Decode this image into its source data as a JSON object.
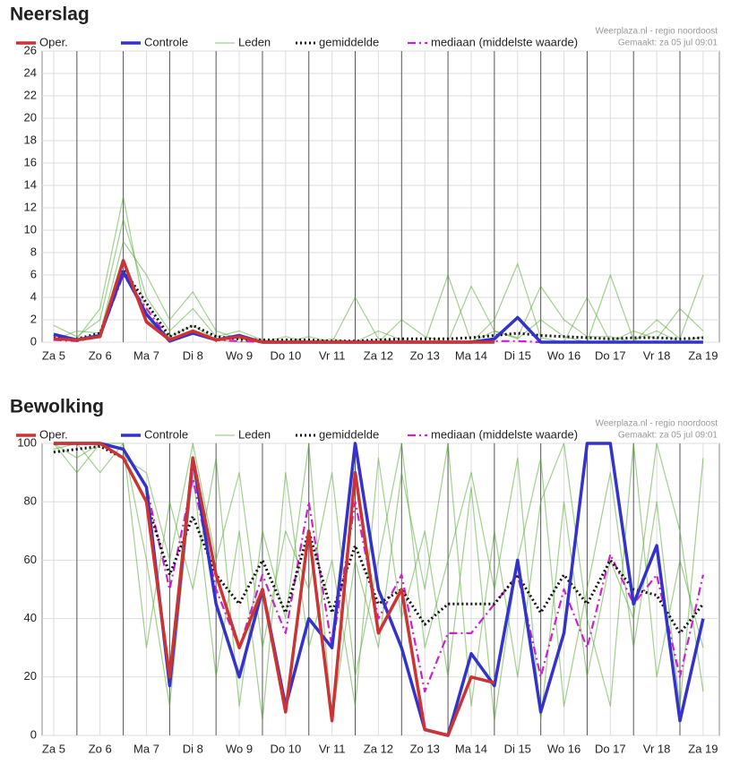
{
  "chart_data": [
    {
      "type": "line",
      "title": "Neerslag",
      "source": "Weerplaza.nl - regio noordoost",
      "created": "Gemaakt: za 05 jul 09:01",
      "xlim": [
        0.25,
        14.85
      ],
      "ylim": [
        0,
        26
      ],
      "yticks": [
        0,
        2,
        4,
        6,
        8,
        10,
        12,
        14,
        16,
        18,
        20,
        22,
        24,
        26
      ],
      "xticks": [
        {
          "value": 0.5,
          "label": "Za 5"
        },
        {
          "value": 1.5,
          "label": "Zo 6"
        },
        {
          "value": 2.5,
          "label": "Ma 7"
        },
        {
          "value": 3.5,
          "label": "Di 8"
        },
        {
          "value": 4.5,
          "label": "Wo 9"
        },
        {
          "value": 5.5,
          "label": "Do 10"
        },
        {
          "value": 6.5,
          "label": "Vr 11"
        },
        {
          "value": 7.5,
          "label": "Za 12"
        },
        {
          "value": 8.5,
          "label": "Zo 13"
        },
        {
          "value": 9.5,
          "label": "Ma 14"
        },
        {
          "value": 10.5,
          "label": "Di 15"
        },
        {
          "value": 11.5,
          "label": "Wo 16"
        },
        {
          "value": 12.5,
          "label": "Do 17"
        },
        {
          "value": 13.5,
          "label": "Vr 18"
        },
        {
          "value": 14.5,
          "label": "Za 19"
        }
      ],
      "grid": true,
      "x": [
        0.5,
        1,
        1.5,
        2,
        2.5,
        3,
        3.5,
        4,
        4.5,
        5,
        5.5,
        6,
        6.5,
        7,
        7.5,
        8,
        8.5,
        9,
        9.5,
        10,
        10.5,
        11,
        11.5,
        12,
        12.5,
        13,
        13.5,
        14,
        14.5
      ],
      "series": [
        {
          "name": "Oper.",
          "color": "#cc3333",
          "style": "solid",
          "values": [
            0.3,
            0.2,
            0.5,
            7.3,
            1.8,
            0.2,
            1.0,
            0.2,
            0.5,
            0,
            0,
            0,
            0,
            0,
            0,
            0,
            0,
            0,
            0,
            0,
            null,
            null,
            null,
            null,
            null,
            null,
            null,
            null,
            null
          ]
        },
        {
          "name": "Controle",
          "color": "#3333cc",
          "style": "solid",
          "values": [
            0.7,
            0.2,
            0.6,
            6.3,
            2.5,
            0.1,
            0.8,
            0.2,
            0.6,
            0,
            0,
            0,
            0,
            0,
            0,
            0,
            0,
            0,
            0,
            0.3,
            2.2,
            0,
            0,
            0,
            0,
            0,
            0,
            0,
            0
          ]
        },
        {
          "name": "Leden",
          "color": "#55aa33",
          "style": "thin",
          "values": [
            1.5,
            0.5,
            2,
            11,
            4,
            1,
            3,
            0.5,
            1,
            0.2,
            0,
            0.5,
            0,
            0,
            1,
            0.2,
            0,
            0,
            5,
            1,
            0.3,
            2,
            0.5,
            0,
            6,
            0.2,
            1,
            0,
            0.5
          ]
        },
        {
          "name": "Leden",
          "color": "#55aa33",
          "style": "thin",
          "values": [
            0.2,
            1,
            0.8,
            9,
            6,
            2,
            4.5,
            1,
            0.3,
            0,
            0.5,
            0,
            0.3,
            0,
            0,
            2,
            0.5,
            0,
            0,
            2,
            7,
            0.4,
            0,
            4,
            0,
            1,
            0.3,
            3,
            1
          ]
        },
        {
          "name": "Leden",
          "color": "#55aa33",
          "style": "thin",
          "values": [
            0.8,
            0.3,
            3,
            13,
            2,
            0.5,
            1.5,
            0.2,
            0,
            0.1,
            0,
            0,
            0,
            4,
            0.3,
            0,
            0,
            6,
            0,
            1,
            0.4,
            5,
            2,
            0.5,
            0.5,
            0,
            2,
            0.3,
            6
          ]
        },
        {
          "name": "gemiddelde",
          "color": "#111111",
          "style": "dotted",
          "values": [
            0.4,
            0.3,
            0.8,
            6.5,
            3.5,
            0.5,
            1.5,
            0.5,
            0.3,
            0.2,
            0.2,
            0.2,
            0.1,
            0.1,
            0.2,
            0.3,
            0.3,
            0.3,
            0.4,
            0.6,
            0.8,
            0.6,
            0.5,
            0.4,
            0.3,
            0.4,
            0.4,
            0.3,
            0.4
          ]
        },
        {
          "name": "mediaan (middelste waarde)",
          "color": "#cc22cc",
          "style": "dashed",
          "values": [
            0.2,
            0.1,
            0.5,
            6,
            3,
            0.2,
            1,
            0.2,
            0.1,
            0,
            0,
            0,
            0,
            0,
            0,
            0,
            0,
            0,
            0,
            0.1,
            0.1,
            0,
            0,
            0,
            0,
            0,
            0,
            0,
            0
          ]
        }
      ]
    },
    {
      "type": "line",
      "title": "Bewolking",
      "source": "Weerplaza.nl - regio noordoost",
      "created": "Gemaakt: za 05 jul 09:01",
      "xlim": [
        0.25,
        14.85
      ],
      "ylim": [
        0,
        100
      ],
      "yticks": [
        0,
        20,
        40,
        60,
        80,
        100
      ],
      "xticks": [
        {
          "value": 0.5,
          "label": "Za 5"
        },
        {
          "value": 1.5,
          "label": "Zo 6"
        },
        {
          "value": 2.5,
          "label": "Ma 7"
        },
        {
          "value": 3.5,
          "label": "Di 8"
        },
        {
          "value": 4.5,
          "label": "Wo 9"
        },
        {
          "value": 5.5,
          "label": "Do 10"
        },
        {
          "value": 6.5,
          "label": "Vr 11"
        },
        {
          "value": 7.5,
          "label": "Za 12"
        },
        {
          "value": 8.5,
          "label": "Zo 13"
        },
        {
          "value": 9.5,
          "label": "Ma 14"
        },
        {
          "value": 10.5,
          "label": "Di 15"
        },
        {
          "value": 11.5,
          "label": "Wo 16"
        },
        {
          "value": 12.5,
          "label": "Do 17"
        },
        {
          "value": 13.5,
          "label": "Vr 18"
        },
        {
          "value": 14.5,
          "label": "Za 19"
        }
      ],
      "grid": true,
      "x": [
        0.5,
        1,
        1.5,
        2,
        2.5,
        3,
        3.5,
        4,
        4.5,
        5,
        5.5,
        6,
        6.5,
        7,
        7.5,
        8,
        8.5,
        9,
        9.5,
        10,
        10.5,
        11,
        11.5,
        12,
        12.5,
        13,
        13.5,
        14,
        14.5
      ],
      "series": [
        {
          "name": "Oper.",
          "color": "#cc3333",
          "style": "solid",
          "values": [
            100,
            100,
            100,
            95,
            80,
            20,
            95,
            55,
            30,
            50,
            8,
            70,
            5,
            90,
            35,
            50,
            2,
            0,
            20,
            18,
            null,
            null,
            null,
            null,
            null,
            null,
            null,
            null,
            null
          ]
        },
        {
          "name": "Controle",
          "color": "#3333cc",
          "style": "solid",
          "values": [
            100,
            100,
            100,
            98,
            85,
            17,
            95,
            45,
            20,
            50,
            10,
            40,
            30,
            100,
            50,
            30,
            2,
            0,
            28,
            17,
            60,
            8,
            35,
            100,
            100,
            45,
            65,
            5,
            40
          ]
        },
        {
          "name": "Leden",
          "color": "#55aa33",
          "style": "thin",
          "values": [
            100,
            95,
            100,
            100,
            60,
            10,
            90,
            20,
            70,
            5,
            90,
            30,
            60,
            10,
            95,
            40,
            70,
            20,
            85,
            5,
            60,
            95,
            10,
            50,
            90,
            30,
            80,
            10,
            95
          ]
        },
        {
          "name": "Leden",
          "color": "#55aa33",
          "style": "thin",
          "values": [
            98,
            100,
            90,
            100,
            30,
            80,
            50,
            95,
            10,
            70,
            40,
            100,
            5,
            60,
            30,
            90,
            50,
            100,
            10,
            70,
            20,
            80,
            100,
            40,
            10,
            100,
            20,
            60,
            30
          ]
        },
        {
          "name": "Leden",
          "color": "#55aa33",
          "style": "thin",
          "values": [
            100,
            90,
            100,
            95,
            90,
            60,
            100,
            60,
            90,
            30,
            70,
            50,
            90,
            20,
            60,
            100,
            30,
            60,
            90,
            50,
            95,
            5,
            80,
            20,
            60,
            40,
            100,
            70,
            15
          ]
        },
        {
          "name": "gemiddelde",
          "color": "#111111",
          "style": "dotted",
          "values": [
            97,
            98,
            99,
            95,
            80,
            55,
            75,
            55,
            45,
            60,
            42,
            70,
            42,
            65,
            45,
            50,
            38,
            45,
            45,
            45,
            55,
            42,
            55,
            45,
            60,
            50,
            48,
            35,
            45
          ]
        },
        {
          "name": "mediaan (middelste waarde)",
          "color": "#cc22cc",
          "style": "dashed",
          "values": [
            100,
            100,
            100,
            98,
            85,
            50,
            88,
            50,
            30,
            55,
            35,
            80,
            30,
            80,
            40,
            55,
            15,
            35,
            35,
            45,
            55,
            20,
            50,
            30,
            62,
            45,
            55,
            20,
            55
          ]
        }
      ]
    }
  ]
}
